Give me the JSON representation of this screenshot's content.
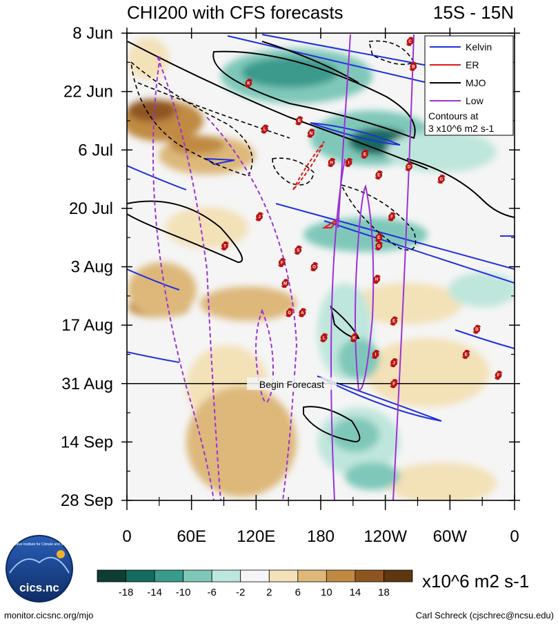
{
  "chart_data": {
    "type": "heatmap",
    "title": "CHI200 with CFS forecasts",
    "region": "15S - 15N",
    "y_ticks": [
      "8 Jun",
      "22 Jun",
      "6 Jul",
      "20 Jul",
      "3 Aug",
      "17 Aug",
      "31 Aug",
      "14 Sep",
      "28 Sep"
    ],
    "x_ticks": [
      "0",
      "60E",
      "120E",
      "180",
      "120W",
      "60W",
      "0"
    ],
    "xlim": [
      0,
      360
    ],
    "ylim_days": [
      0,
      112
    ],
    "forecast_day": 84,
    "forecast_label": "Begin Forecast",
    "legend": {
      "items": [
        {
          "name": "Kelvin",
          "color": "#1f2fe0"
        },
        {
          "name": "ER",
          "color": "#e01818"
        },
        {
          "name": "MJO",
          "color": "#000000"
        },
        {
          "name": "Low",
          "color": "#9b30d9"
        }
      ],
      "note_line1": "Contours at",
      "note_line2": "3 x10^6 m2 s-1"
    },
    "colorbar": {
      "levels": [
        "-18",
        "-14",
        "-10",
        "-6",
        "-2",
        "2",
        "6",
        "10",
        "14",
        "18"
      ],
      "colors": [
        "#0d3d33",
        "#146b60",
        "#3a9a8c",
        "#7fc8b9",
        "#bfe6dc",
        "#f5f5f5",
        "#f3e1b8",
        "#ddb87a",
        "#c08a43",
        "#8f5520",
        "#5e3610"
      ],
      "units": "x10^6 m2 s-1"
    },
    "storms": [
      {
        "letter": "C",
        "lon": 263,
        "day": 2
      },
      {
        "letter": "B",
        "lon": 266,
        "day": 8
      },
      {
        "letter": "K",
        "lon": 113,
        "day": 12
      },
      {
        "letter": "L",
        "lon": 128,
        "day": 23
      },
      {
        "letter": "B",
        "lon": 160,
        "day": 21
      },
      {
        "letter": "N",
        "lon": 171,
        "day": 24
      },
      {
        "letter": "E",
        "lon": 221,
        "day": 29
      },
      {
        "letter": "H",
        "lon": 190,
        "day": 31
      },
      {
        "letter": "I",
        "lon": 206,
        "day": 31
      },
      {
        "letter": "D",
        "lon": 262,
        "day": 32
      },
      {
        "letter": "E",
        "lon": 234,
        "day": 34
      },
      {
        "letter": "G",
        "lon": 292,
        "day": 35
      },
      {
        "letter": "F",
        "lon": 246,
        "day": 44
      },
      {
        "letter": "J",
        "lon": 123,
        "day": 44
      },
      {
        "letter": "E",
        "lon": 234,
        "day": 49
      },
      {
        "letter": "T",
        "lon": 91,
        "day": 51
      },
      {
        "letter": "S",
        "lon": 159,
        "day": 52
      },
      {
        "letter": "G",
        "lon": 234,
        "day": 51
      },
      {
        "letter": "F",
        "lon": 144,
        "day": 55
      },
      {
        "letter": "O",
        "lon": 174,
        "day": 56
      },
      {
        "letter": "M",
        "lon": 147,
        "day": 60
      },
      {
        "letter": "H",
        "lon": 232,
        "day": 59
      },
      {
        "letter": "G",
        "lon": 151,
        "day": 67
      },
      {
        "letter": "A",
        "lon": 163,
        "day": 67
      },
      {
        "letter": "E",
        "lon": 248,
        "day": 69
      },
      {
        "letter": "D",
        "lon": 325,
        "day": 71
      },
      {
        "letter": "L",
        "lon": 183,
        "day": 73
      },
      {
        "letter": "K",
        "lon": 211,
        "day": 73
      },
      {
        "letter": "I",
        "lon": 231,
        "day": 77
      },
      {
        "letter": "E",
        "lon": 315,
        "day": 77
      },
      {
        "letter": "J",
        "lon": 248,
        "day": 79
      },
      {
        "letter": "F",
        "lon": 248,
        "day": 84
      },
      {
        "letter": "F",
        "lon": 345,
        "day": 82
      }
    ]
  },
  "footer": {
    "left": "monitor.cicsnc.org/mjo",
    "right": "Carl Schreck (cjschrec@ncsu.edu)"
  },
  "logo": {
    "text": "cics.nc",
    "ring_text": "Cooperative Institute for Climate and Satellites"
  }
}
